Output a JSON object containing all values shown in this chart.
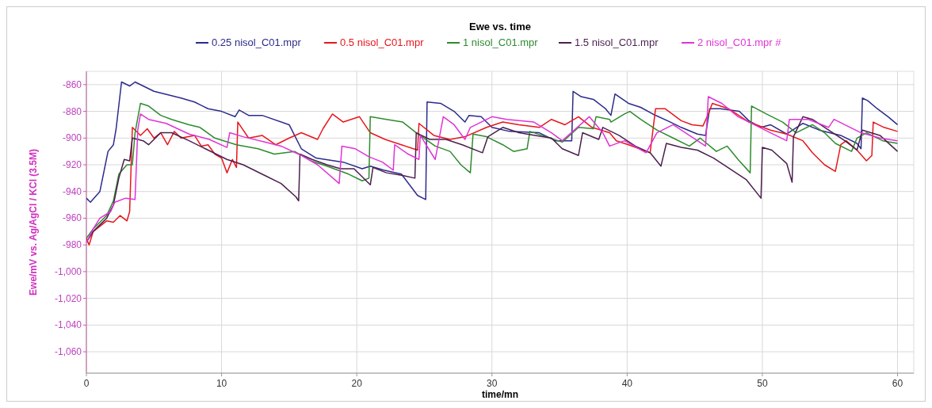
{
  "chart_data": {
    "type": "line",
    "title": "Ewe vs. time",
    "xlabel": "time/mn",
    "ylabel": "Ewe/mV vs. Ag/AgCl / KCl (3.5M)",
    "xlim": [
      0,
      61.2
    ],
    "ylim": [
      -1076,
      -850
    ],
    "xticks": [
      0,
      10,
      20,
      30,
      40,
      50,
      60
    ],
    "yticks": [
      -860,
      -880,
      -900,
      -920,
      -940,
      -960,
      -980,
      {
        "value": -1000,
        "label": "-1,000"
      },
      {
        "value": -1020,
        "label": "-1,020"
      },
      {
        "value": -1040,
        "label": "-1,040"
      },
      {
        "value": -1060,
        "label": "-1,060"
      }
    ],
    "grid": true,
    "legend": "top",
    "line_style": "solid",
    "marker": "none",
    "series": [
      {
        "name": "0.25 nisol_C01.mpr",
        "color": "#2b2b8c",
        "x": [
          0,
          0.3,
          1,
          1.3,
          1.6,
          2,
          2.2,
          2.6,
          3.2,
          3.6,
          5,
          7,
          8,
          9,
          10,
          11,
          11.3,
          12,
          13,
          15,
          15.9,
          17,
          19,
          20.4,
          21,
          22,
          23.3,
          24.5,
          25.1,
          25.2,
          26.2,
          27.2,
          28,
          28.3,
          29.2,
          30,
          31.3,
          33.5,
          34.7,
          35.9,
          36,
          36.6,
          37.5,
          38.4,
          38.8,
          39.1,
          40.1,
          41,
          41.9,
          43.2,
          44,
          45.2,
          45.8,
          46.1,
          46.9,
          48.3,
          49,
          49.9,
          50.6,
          51.8,
          53,
          54.2,
          55.8,
          57,
          57.3,
          57.4,
          57.8,
          58.5,
          59.3,
          60
        ],
        "values": [
          -945,
          -948,
          -940,
          -925,
          -910,
          -905,
          -893,
          -858,
          -861,
          -858,
          -865,
          -870,
          -873,
          -878,
          -880,
          -884,
          -879,
          -883,
          -883,
          -890,
          -908,
          -915,
          -918,
          -923,
          -921,
          -924,
          -927,
          -943,
          -946,
          -873,
          -874,
          -880,
          -888,
          -883,
          -884,
          -892,
          -895,
          -896,
          -902,
          -902,
          -865,
          -869,
          -871,
          -878,
          -883,
          -867,
          -874,
          -877,
          -882,
          -888,
          -892,
          -897,
          -898,
          -878,
          -878,
          -880,
          -887,
          -892,
          -890,
          -897,
          -889,
          -894,
          -898,
          -904,
          -908,
          -870,
          -872,
          -878,
          -884,
          -890
        ]
      },
      {
        "name": "0.5 nisol_C01.mpr",
        "color": "#e8161b",
        "x": [
          0,
          0.2,
          0.5,
          1,
          1.5,
          2,
          2.5,
          3,
          3.2,
          3.4,
          4,
          4.5,
          5,
          5.5,
          6,
          6.5,
          7,
          8,
          8.5,
          9,
          9.5,
          10,
          10.4,
          10.8,
          11.1,
          11.2,
          12,
          13,
          14,
          15,
          15.9,
          17.1,
          17.5,
          18.2,
          19,
          20.2,
          21,
          22.1,
          23.3,
          24.5,
          24.6,
          25.7,
          26.9,
          28,
          29.6,
          30.8,
          32,
          33.5,
          34.4,
          35.4,
          36.4,
          37.4,
          38.7,
          39.2,
          40.1,
          41.7,
          42.1,
          42.8,
          44,
          44.8,
          45.6,
          46,
          46.3,
          47.5,
          49,
          50.6,
          51.8,
          53,
          53.7,
          54.6,
          55.4,
          55.8,
          56.2,
          57,
          57.7,
          58.1,
          58.2,
          59,
          60
        ],
        "values": [
          -975,
          -980,
          -970,
          -966,
          -962,
          -963,
          -958,
          -962,
          -955,
          -892,
          -898,
          -893,
          -900,
          -896,
          -905,
          -895,
          -900,
          -898,
          -906,
          -905,
          -912,
          -915,
          -926,
          -916,
          -922,
          -888,
          -900,
          -898,
          -905,
          -900,
          -896,
          -901,
          -893,
          -882,
          -888,
          -884,
          -896,
          -901,
          -905,
          -909,
          -889,
          -898,
          -901,
          -899,
          -892,
          -888,
          -890,
          -892,
          -886,
          -890,
          -884,
          -892,
          -896,
          -902,
          -905,
          -911,
          -878,
          -878,
          -887,
          -890,
          -891,
          -882,
          -874,
          -878,
          -888,
          -894,
          -897,
          -902,
          -911,
          -920,
          -925,
          -905,
          -902,
          -909,
          -917,
          -913,
          -888,
          -892,
          -895
        ]
      },
      {
        "name": "1 nisol_C01.mpr",
        "color": "#2e8b2e",
        "x": [
          0,
          0.5,
          1,
          1.5,
          2,
          2.4,
          3,
          3.4,
          3.6,
          4,
          4.6,
          5.5,
          6.3,
          7.6,
          8.4,
          9.5,
          11.1,
          12.7,
          13.9,
          15.4,
          16.6,
          17.8,
          19.4,
          20.4,
          20.9,
          21,
          22.2,
          23.4,
          24.4,
          25.8,
          26.9,
          27.7,
          28.4,
          28.6,
          29.6,
          30.8,
          31.6,
          32.6,
          32.8,
          34,
          35.2,
          36.4,
          37.5,
          37.7,
          38.7,
          38.8,
          39.8,
          40.2,
          41,
          42.2,
          43.4,
          44.6,
          45.4,
          46.6,
          47.4,
          48.2,
          49.1,
          49.2,
          50.3,
          51.5,
          52.5,
          53.7,
          54.6,
          55.4,
          56.6,
          57,
          57.7,
          58.9,
          60
        ],
        "values": [
          -975,
          -968,
          -963,
          -958,
          -947,
          -927,
          -920,
          -920,
          -896,
          -874,
          -876,
          -883,
          -886,
          -890,
          -892,
          -900,
          -905,
          -908,
          -912,
          -910,
          -917,
          -921,
          -927,
          -932,
          -930,
          -884,
          -886,
          -888,
          -896,
          -906,
          -910,
          -920,
          -926,
          -897,
          -899,
          -905,
          -910,
          -908,
          -895,
          -899,
          -903,
          -892,
          -893,
          -884,
          -886,
          -888,
          -882,
          -880,
          -886,
          -894,
          -900,
          -906,
          -900,
          -910,
          -906,
          -916,
          -926,
          -876,
          -882,
          -888,
          -896,
          -890,
          -896,
          -904,
          -910,
          -900,
          -896,
          -902,
          -904
        ]
      },
      {
        "name": "1.5 nisol_C01.mpr",
        "color": "#4b1f4f",
        "x": [
          0,
          0.5,
          1,
          1.5,
          2,
          2.4,
          2.8,
          3.2,
          3.4,
          4.2,
          4.6,
          5.5,
          6.3,
          7.6,
          8.8,
          10.4,
          11.6,
          13.2,
          14.4,
          15.5,
          15.7,
          15.8,
          16.7,
          17.8,
          18.8,
          19.8,
          21,
          21.2,
          22.2,
          23.4,
          24.3,
          24.4,
          25.4,
          26.6,
          27.8,
          29.3,
          29.7,
          30.8,
          32,
          33.2,
          34.4,
          35.2,
          36.4,
          36.7,
          37.9,
          38.2,
          39.4,
          40.6,
          41.7,
          42.5,
          42.9,
          44,
          45.2,
          46.4,
          47.6,
          48.8,
          49.9,
          50,
          50.7,
          51.8,
          52.2,
          52.3,
          53,
          53.7,
          54.9,
          56.1,
          57,
          57.4,
          58.7,
          60
        ],
        "values": [
          -978,
          -970,
          -965,
          -960,
          -950,
          -930,
          -916,
          -917,
          -900,
          -902,
          -905,
          -896,
          -896,
          -902,
          -908,
          -916,
          -920,
          -928,
          -934,
          -944,
          -947,
          -912,
          -916,
          -920,
          -923,
          -923,
          -935,
          -922,
          -926,
          -928,
          -930,
          -896,
          -901,
          -901,
          -905,
          -911,
          -899,
          -892,
          -896,
          -898,
          -900,
          -908,
          -913,
          -896,
          -901,
          -892,
          -898,
          -906,
          -911,
          -921,
          -904,
          -907,
          -909,
          -915,
          -923,
          -931,
          -945,
          -907,
          -909,
          -919,
          -933,
          -899,
          -884,
          -886,
          -894,
          -902,
          -909,
          -894,
          -898,
          -910
        ]
      },
      {
        "name": "2 nisol_C01.mpr #",
        "color": "#e033d6",
        "x": [
          0,
          0.5,
          1,
          1.8,
          2.1,
          2.9,
          3.6,
          3.8,
          4,
          4.6,
          5.9,
          7.6,
          9.1,
          10.4,
          10.6,
          11.6,
          13.2,
          14.4,
          15.9,
          17.1,
          18.7,
          18.9,
          19.9,
          20.9,
          21.9,
          22.7,
          22.8,
          23.8,
          24.6,
          24.7,
          25.8,
          26.4,
          27.2,
          28,
          28.4,
          30,
          31.1,
          33.1,
          34.4,
          35.2,
          37.2,
          38.2,
          38.7,
          39.8,
          41.4,
          42.2,
          43.4,
          44.6,
          45.8,
          46,
          47,
          48.2,
          49.4,
          50.6,
          51.8,
          52,
          53.4,
          54.9,
          55.3,
          56.5,
          57.3,
          58.7,
          60
        ],
        "values": [
          -978,
          -968,
          -960,
          -955,
          -948,
          -945,
          -946,
          -894,
          -882,
          -886,
          -889,
          -897,
          -901,
          -907,
          -896,
          -899,
          -903,
          -906,
          -913,
          -920,
          -934,
          -906,
          -908,
          -914,
          -918,
          -924,
          -905,
          -912,
          -916,
          -898,
          -916,
          -884,
          -890,
          -901,
          -892,
          -884,
          -886,
          -888,
          -896,
          -902,
          -884,
          -896,
          -906,
          -902,
          -911,
          -896,
          -890,
          -898,
          -906,
          -869,
          -874,
          -884,
          -890,
          -896,
          -902,
          -886,
          -886,
          -892,
          -886,
          -892,
          -896,
          -900,
          -902
        ]
      }
    ]
  }
}
